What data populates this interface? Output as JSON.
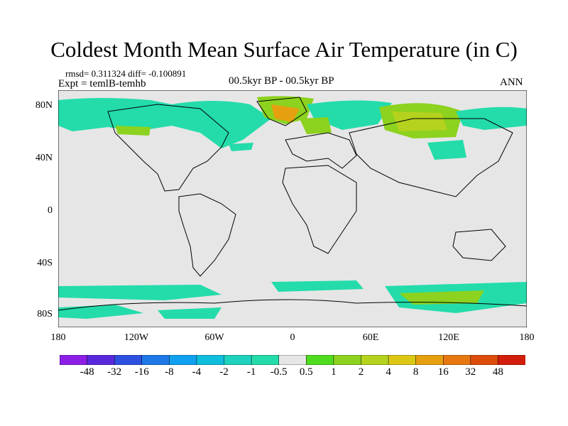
{
  "title": "Coldest Month Mean Surface Air Temperature (in C)",
  "stats": "rmsd= 0.311324 diff= -0.100891",
  "experiment": "Expt = temlB-temhb",
  "period": "00.5kyr BP - 00.5kyr BP",
  "season": "ANN",
  "y_ticks": [
    "80N",
    "40N",
    "0",
    "40S",
    "80S"
  ],
  "x_ticks": [
    "180",
    "120W",
    "60W",
    "0",
    "60E",
    "120E",
    "180"
  ],
  "colorbar": {
    "labels": [
      "-48",
      "-32",
      "-16",
      "-8",
      "-4",
      "-2",
      "-1",
      "-0.5",
      "0.5",
      "1",
      "2",
      "4",
      "8",
      "16",
      "32",
      "48"
    ],
    "colors": [
      "#8c1ee6",
      "#5a28dc",
      "#2d50e1",
      "#1e78e6",
      "#0fa0f0",
      "#0fbedc",
      "#1ed2be",
      "#23dcaa",
      "#e6e6e6",
      "#50dc1e",
      "#8cd21e",
      "#b4d21e",
      "#dcc814",
      "#e6a00f",
      "#e6780f",
      "#dc4b0a",
      "#d21e0a"
    ]
  },
  "map_colors": {
    "ocean_land_background": "#e6e6e6",
    "coastline": "#000000"
  }
}
